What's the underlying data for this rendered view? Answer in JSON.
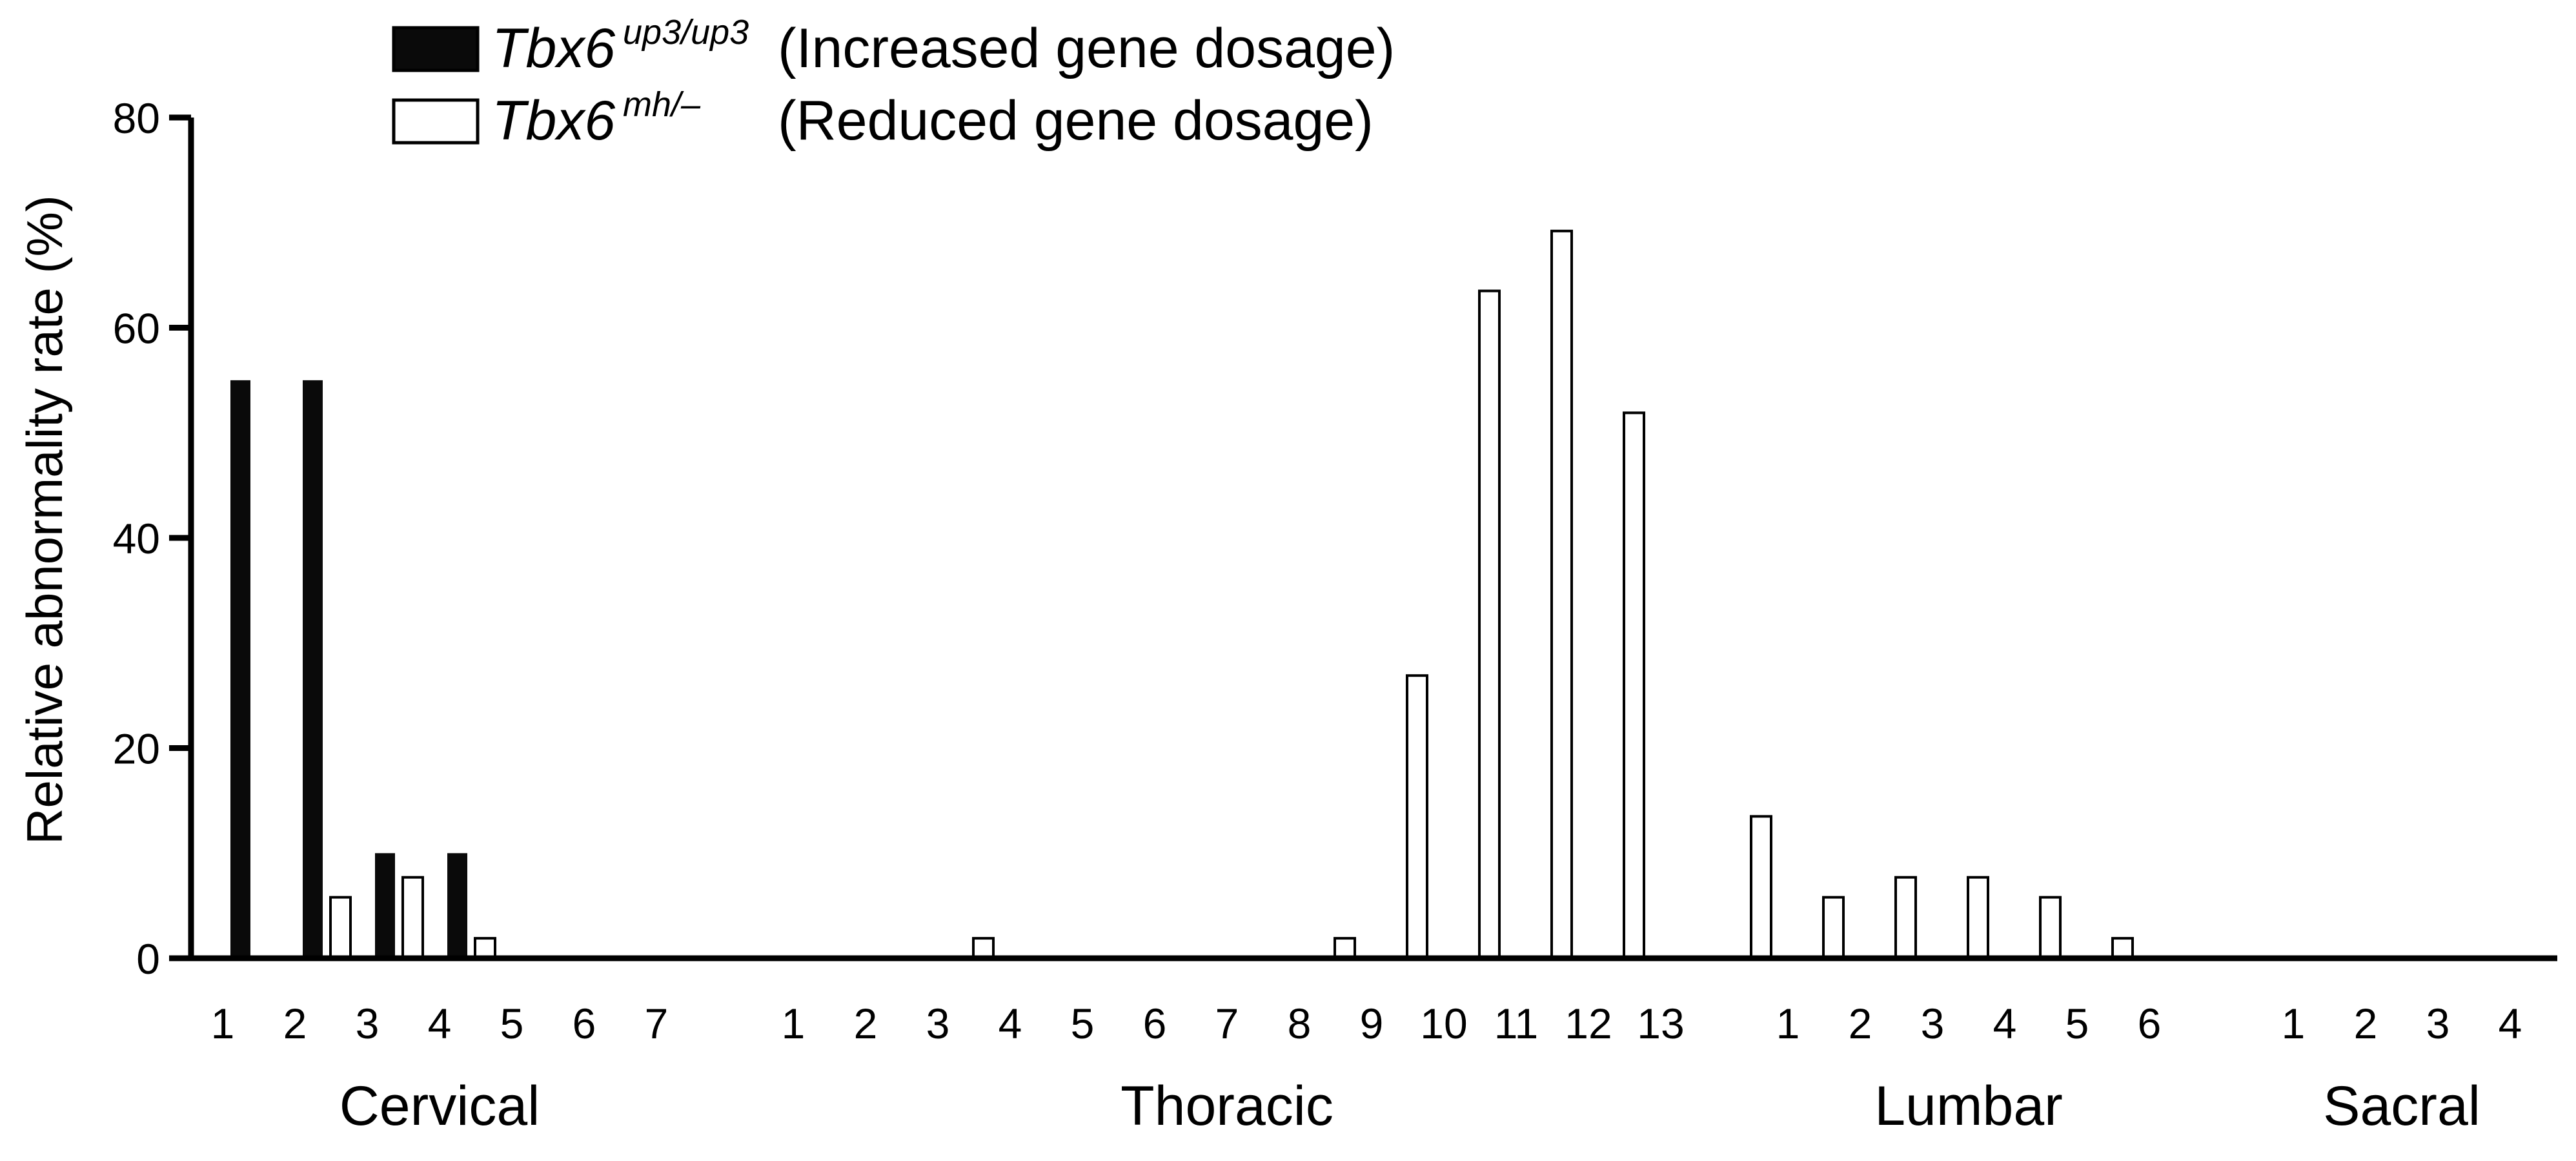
{
  "chart_data": {
    "type": "bar",
    "ylabel": "Relative abnormality rate (%)",
    "ylim": [
      0,
      80
    ],
    "yticks": [
      "0",
      "20",
      "40",
      "60",
      "80"
    ],
    "grid": false,
    "legend_position": "top-left",
    "legend": [
      {
        "series": "up3",
        "italic": "Tbx6",
        "sup": "up3/up3",
        "text": "(Increased gene dosage)"
      },
      {
        "series": "mh",
        "italic": "Tbx6",
        "sup": "mh/–",
        "text": "(Reduced gene dosage)"
      }
    ],
    "groups": [
      {
        "label": "Cervical",
        "categories": [
          "1",
          "2",
          "3",
          "4",
          "5",
          "6",
          "7"
        ]
      },
      {
        "label": "Thoracic",
        "categories": [
          "1",
          "2",
          "3",
          "4",
          "5",
          "6",
          "7",
          "8",
          "9",
          "10",
          "11",
          "12",
          "13"
        ]
      },
      {
        "label": "Lumbar",
        "categories": [
          "1",
          "2",
          "3",
          "4",
          "5",
          "6"
        ]
      },
      {
        "label": "Sacral",
        "categories": [
          "1",
          "2",
          "3",
          "4"
        ]
      }
    ],
    "series": [
      {
        "key": "up3",
        "fill": "#0a0a0a",
        "values": [
          [
            55,
            55,
            10,
            10,
            0,
            0,
            0
          ],
          [
            0,
            0,
            0,
            0,
            0,
            0,
            0,
            0,
            0,
            0,
            0,
            0,
            0
          ],
          [
            0,
            0,
            0,
            0,
            0,
            0
          ],
          [
            0,
            0,
            0,
            0
          ]
        ]
      },
      {
        "key": "mh",
        "fill": "#ffffff",
        "values": [
          [
            0,
            0,
            5.8,
            7.7,
            1.9,
            0,
            0
          ],
          [
            0,
            0,
            0,
            1.9,
            0,
            0,
            0,
            0,
            1.9,
            26.9,
            63.5,
            69.2,
            51.9
          ],
          [
            13.5,
            5.8,
            7.7,
            7.7,
            5.8,
            1.9
          ],
          [
            0,
            0,
            0,
            0
          ]
        ]
      }
    ]
  }
}
